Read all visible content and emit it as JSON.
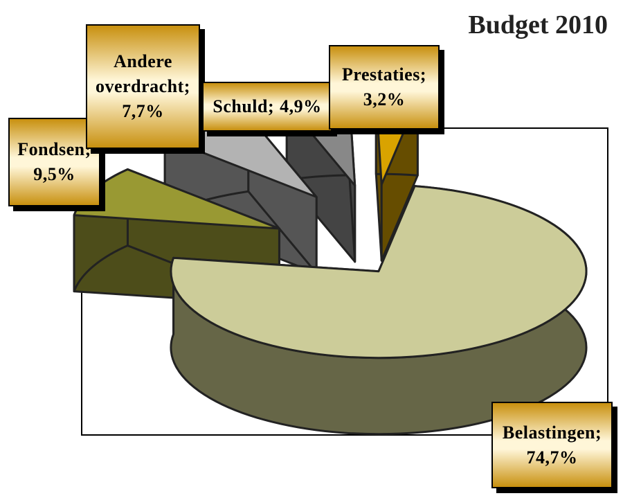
{
  "chart_data": {
    "type": "pie",
    "title": "Budget 2010",
    "categories": [
      "Belastingen",
      "Fondsen",
      "Andere overdracht",
      "Schuld",
      "Prestaties"
    ],
    "values": [
      74.7,
      9.5,
      7.7,
      4.9,
      3.2
    ],
    "value_labels": [
      "74,7%",
      "9,5%",
      "7,7%",
      "4,9%",
      "3,2%"
    ],
    "label_separator": ";",
    "colors": [
      "#cccc99",
      "#999933",
      "#b3b3b3",
      "#888888",
      "#d9a300"
    ],
    "side_colors": [
      "#666647",
      "#4d4d1a",
      "#555555",
      "#444444",
      "#664d00"
    ]
  }
}
